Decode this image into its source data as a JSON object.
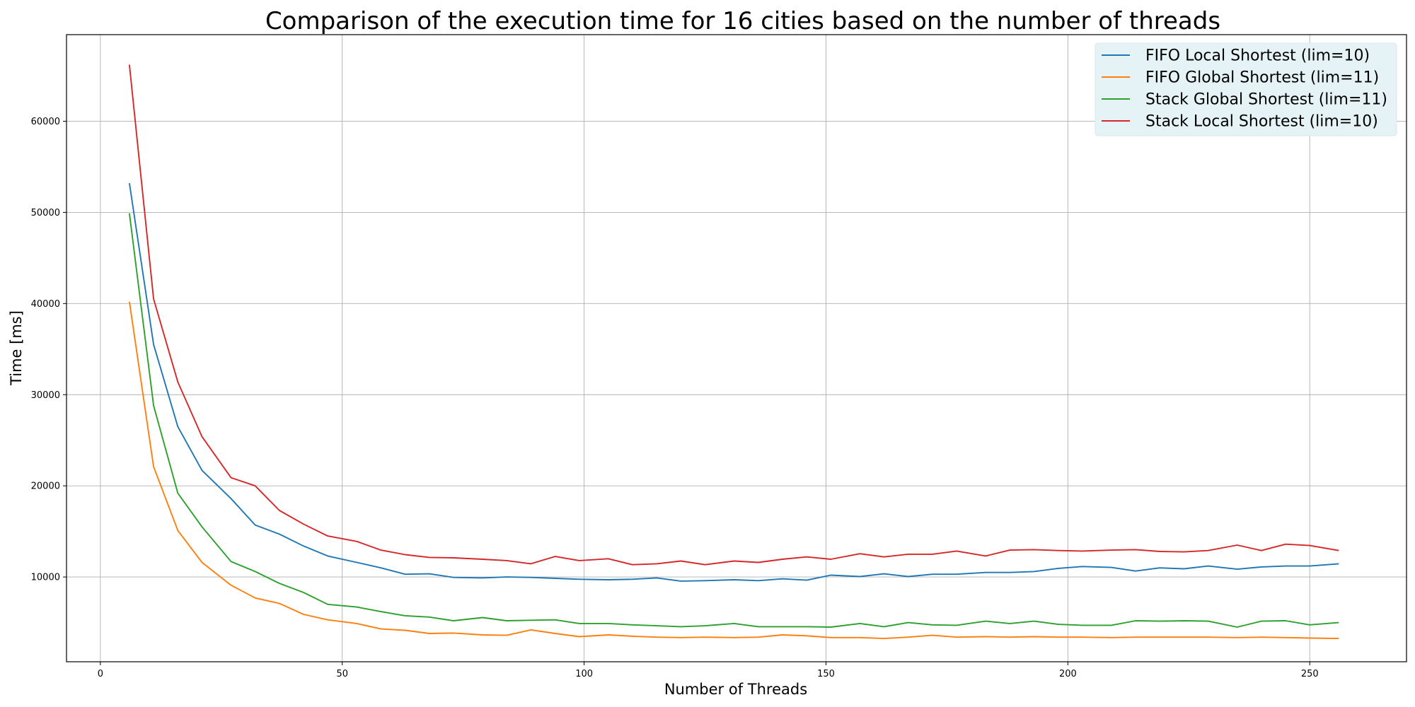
{
  "chart_data": {
    "type": "line",
    "title": "Comparison of the execution time for 16 cities based on the number of threads",
    "xlabel": "Number of Threads",
    "ylabel": "Time [ms]",
    "xlim": [
      -7,
      270
    ],
    "ylim": [
      700,
      69500
    ],
    "xticks": [
      0,
      50,
      100,
      150,
      200,
      250
    ],
    "yticks": [
      10000,
      20000,
      30000,
      40000,
      50000,
      60000
    ],
    "grid": true,
    "legend_position": "top-right",
    "x": [
      6,
      11,
      16,
      21,
      27,
      32,
      37,
      42,
      47,
      53,
      58,
      63,
      68,
      73,
      79,
      84,
      89,
      94,
      99,
      105,
      110,
      115,
      120,
      125,
      131,
      136,
      141,
      146,
      151,
      157,
      162,
      167,
      172,
      177,
      183,
      188,
      193,
      198,
      203,
      209,
      214,
      219,
      224,
      229,
      235,
      240,
      245,
      250,
      256
    ],
    "series": [
      {
        "name": "FIFO Local Shortest (lim=10)",
        "color": "#1f77b4",
        "values": [
          53200,
          35500,
          26500,
          21700,
          18600,
          15700,
          14700,
          13400,
          12300,
          11600,
          11000,
          10300,
          10350,
          9950,
          9900,
          10000,
          9950,
          9850,
          9750,
          9700,
          9750,
          9900,
          9550,
          9600,
          9700,
          9600,
          9800,
          9650,
          10200,
          10050,
          10350,
          10050,
          10300,
          10300,
          10500,
          10500,
          10600,
          10950,
          11150,
          11050,
          10650,
          11000,
          10900,
          11200,
          10850,
          11100,
          11200,
          11200,
          11450
        ]
      },
      {
        "name": "FIFO Global Shortest (lim=11)",
        "color": "#ff7f0e",
        "values": [
          40200,
          22100,
          15100,
          11600,
          9100,
          7700,
          7100,
          5900,
          5300,
          4900,
          4300,
          4150,
          3800,
          3850,
          3650,
          3600,
          4200,
          3800,
          3450,
          3650,
          3500,
          3400,
          3350,
          3400,
          3350,
          3400,
          3650,
          3550,
          3350,
          3350,
          3250,
          3400,
          3600,
          3400,
          3450,
          3400,
          3450,
          3400,
          3400,
          3350,
          3400,
          3400,
          3400,
          3400,
          3350,
          3400,
          3350,
          3300,
          3250
        ]
      },
      {
        "name": "Stack Global Shortest (lim=11)",
        "color": "#2ca02c",
        "values": [
          49900,
          28800,
          19200,
          15500,
          11700,
          10600,
          9300,
          8300,
          7000,
          6700,
          6200,
          5750,
          5600,
          5200,
          5550,
          5200,
          5250,
          5300,
          4900,
          4900,
          4750,
          4650,
          4550,
          4650,
          4900,
          4550,
          4550,
          4550,
          4500,
          4900,
          4550,
          5000,
          4750,
          4700,
          5150,
          4900,
          5150,
          4800,
          4700,
          4700,
          5200,
          5150,
          5200,
          5150,
          4500,
          5150,
          5200,
          4750,
          5000
        ]
      },
      {
        "name": "Stack Local Shortest (lim=10)",
        "color": "#d62728",
        "values": [
          66200,
          40500,
          31400,
          25400,
          20900,
          20000,
          17300,
          15800,
          14500,
          13900,
          12950,
          12450,
          12150,
          12100,
          11950,
          11800,
          11450,
          12250,
          11800,
          12000,
          11350,
          11450,
          11750,
          11350,
          11750,
          11600,
          11950,
          12200,
          11950,
          12550,
          12200,
          12500,
          12500,
          12850,
          12300,
          12950,
          13000,
          12900,
          12850,
          12950,
          13000,
          12800,
          12750,
          12900,
          13500,
          12900,
          13600,
          13450,
          12900
        ]
      }
    ]
  }
}
